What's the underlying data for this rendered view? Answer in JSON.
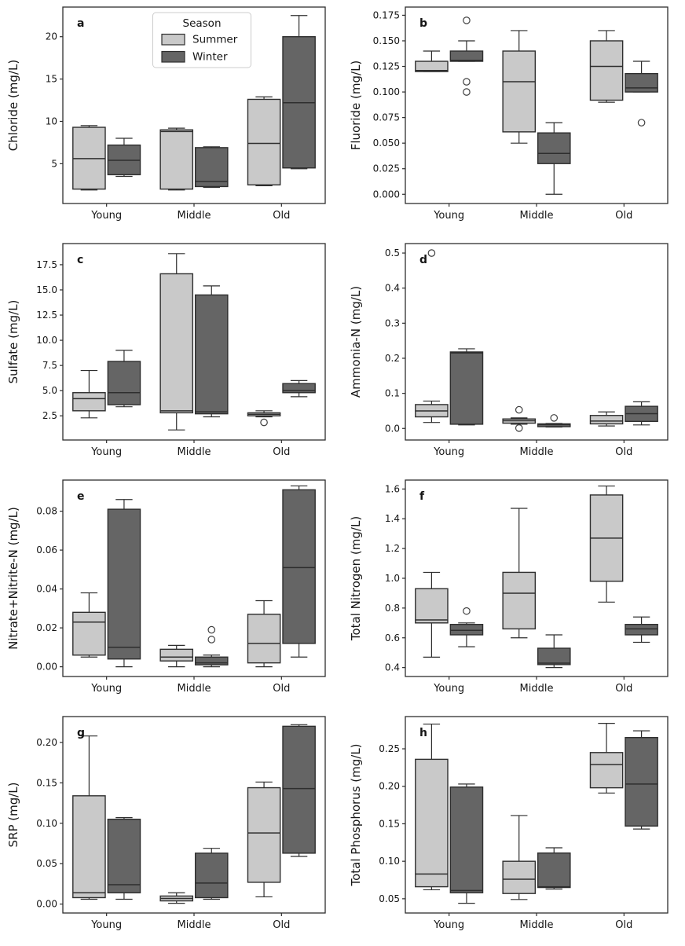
{
  "figure": {
    "background": "#ffffff",
    "spine_color": "#2e2e2e",
    "edge_color": "#2e2e2e",
    "flier_edge_color": "#3f3f3f",
    "tick_text_color": "#151515",
    "legend": {
      "title": "Season",
      "border_color": "#cccccc",
      "location": "upper center of panel a",
      "entries": [
        {
          "label": "Summer",
          "color": "#c9c9c9"
        },
        {
          "label": "Winter",
          "color": "#656565"
        }
      ]
    }
  },
  "chart_data": [
    {
      "type": "box",
      "panel_label": "a",
      "ylabel": "Chloride (mg/L)",
      "xlabel": "",
      "categories": [
        "Young",
        "Middle",
        "Old"
      ],
      "ylim": [
        0.3,
        23.5
      ],
      "yticks": [
        5,
        10,
        15,
        20
      ],
      "ytick_labels": [
        "5",
        "10",
        "15",
        "20"
      ],
      "has_legend": true,
      "series": [
        {
          "name": "Summer",
          "color": "#c9c9c9",
          "boxes": [
            {
              "whislo": 1.9,
              "q1": 2.0,
              "med": 5.6,
              "q3": 9.3,
              "whishi": 9.5,
              "fliers": []
            },
            {
              "whislo": 1.9,
              "q1": 2.0,
              "med": 8.8,
              "q3": 9.0,
              "whishi": 9.2,
              "fliers": []
            },
            {
              "whislo": 2.4,
              "q1": 2.5,
              "med": 7.4,
              "q3": 12.6,
              "whishi": 12.9,
              "fliers": []
            }
          ]
        },
        {
          "name": "Winter",
          "color": "#656565",
          "boxes": [
            {
              "whislo": 3.5,
              "q1": 3.7,
              "med": 5.4,
              "q3": 7.2,
              "whishi": 8.0,
              "fliers": []
            },
            {
              "whislo": 2.2,
              "q1": 2.3,
              "med": 2.9,
              "q3": 6.9,
              "whishi": 7.0,
              "fliers": []
            },
            {
              "whislo": 4.4,
              "q1": 4.5,
              "med": 12.2,
              "q3": 20.0,
              "whishi": 22.5,
              "fliers": []
            }
          ]
        }
      ]
    },
    {
      "type": "box",
      "panel_label": "b",
      "ylabel": "Fluoride (mg/L)",
      "xlabel": "",
      "categories": [
        "Young",
        "Middle",
        "Old"
      ],
      "ylim": [
        -0.009,
        0.183
      ],
      "yticks": [
        0.0,
        0.025,
        0.05,
        0.075,
        0.1,
        0.125,
        0.15,
        0.175
      ],
      "ytick_labels": [
        "0.000",
        "0.025",
        "0.050",
        "0.075",
        "0.100",
        "0.125",
        "0.150",
        "0.175"
      ],
      "has_legend": false,
      "series": [
        {
          "name": "Summer",
          "color": "#c9c9c9",
          "boxes": [
            {
              "whislo": 0.12,
              "q1": 0.12,
              "med": 0.121,
              "q3": 0.13,
              "whishi": 0.14,
              "fliers": []
            },
            {
              "whislo": 0.05,
              "q1": 0.061,
              "med": 0.11,
              "q3": 0.14,
              "whishi": 0.16,
              "fliers": []
            },
            {
              "whislo": 0.09,
              "q1": 0.092,
              "med": 0.125,
              "q3": 0.15,
              "whishi": 0.16,
              "fliers": []
            }
          ]
        },
        {
          "name": "Winter",
          "color": "#656565",
          "boxes": [
            {
              "whislo": 0.13,
              "q1": 0.13,
              "med": 0.131,
              "q3": 0.14,
              "whishi": 0.15,
              "fliers": [
                0.17,
                0.11,
                0.1
              ]
            },
            {
              "whislo": 0.0,
              "q1": 0.03,
              "med": 0.04,
              "q3": 0.06,
              "whishi": 0.07,
              "fliers": []
            },
            {
              "whislo": 0.1,
              "q1": 0.1,
              "med": 0.104,
              "q3": 0.118,
              "whishi": 0.13,
              "fliers": [
                0.07
              ]
            }
          ]
        }
      ]
    },
    {
      "type": "box",
      "panel_label": "c",
      "ylabel": "Sulfate (mg/L)",
      "xlabel": "",
      "categories": [
        "Young",
        "Middle",
        "Old"
      ],
      "ylim": [
        0.1,
        19.6
      ],
      "yticks": [
        2.5,
        5.0,
        7.5,
        10.0,
        12.5,
        15.0,
        17.5
      ],
      "ytick_labels": [
        "2.5",
        "5.0",
        "7.5",
        "10.0",
        "12.5",
        "15.0",
        "17.5"
      ],
      "has_legend": false,
      "series": [
        {
          "name": "Summer",
          "color": "#c9c9c9",
          "boxes": [
            {
              "whislo": 2.3,
              "q1": 3.0,
              "med": 4.2,
              "q3": 4.8,
              "whishi": 7.0,
              "fliers": []
            },
            {
              "whislo": 1.1,
              "q1": 2.8,
              "med": 3.0,
              "q3": 16.6,
              "whishi": 18.6,
              "fliers": []
            },
            {
              "whislo": 2.4,
              "q1": 2.5,
              "med": 2.65,
              "q3": 2.8,
              "whishi": 3.0,
              "fliers": [
                1.85
              ]
            }
          ]
        },
        {
          "name": "Winter",
          "color": "#656565",
          "boxes": [
            {
              "whislo": 3.4,
              "q1": 3.6,
              "med": 4.8,
              "q3": 7.9,
              "whishi": 9.0,
              "fliers": []
            },
            {
              "whislo": 2.4,
              "q1": 2.7,
              "med": 2.9,
              "q3": 14.5,
              "whishi": 15.4,
              "fliers": []
            },
            {
              "whislo": 4.4,
              "q1": 4.8,
              "med": 5.0,
              "q3": 5.7,
              "whishi": 6.0,
              "fliers": []
            }
          ]
        }
      ]
    },
    {
      "type": "box",
      "panel_label": "d",
      "ylabel": "Ammonia-N (mg/L)",
      "xlabel": "",
      "categories": [
        "Young",
        "Middle",
        "Old"
      ],
      "ylim": [
        -0.033,
        0.527
      ],
      "yticks": [
        0.0,
        0.1,
        0.2,
        0.3,
        0.4,
        0.5
      ],
      "ytick_labels": [
        "0.0",
        "0.1",
        "0.2",
        "0.3",
        "0.4",
        "0.5"
      ],
      "has_legend": false,
      "series": [
        {
          "name": "Summer",
          "color": "#c9c9c9",
          "boxes": [
            {
              "whislo": 0.017,
              "q1": 0.033,
              "med": 0.05,
              "q3": 0.068,
              "whishi": 0.078,
              "fliers": [
                0.5
              ]
            },
            {
              "whislo": 0.012,
              "q1": 0.015,
              "med": 0.022,
              "q3": 0.027,
              "whishi": 0.03,
              "fliers": [
                0.053,
                0.001
              ]
            },
            {
              "whislo": 0.007,
              "q1": 0.013,
              "med": 0.021,
              "q3": 0.037,
              "whishi": 0.047,
              "fliers": []
            }
          ]
        },
        {
          "name": "Winter",
          "color": "#656565",
          "boxes": [
            {
              "whislo": 0.01,
              "q1": 0.012,
              "med": 0.215,
              "q3": 0.218,
              "whishi": 0.227,
              "fliers": []
            },
            {
              "whislo": 0.004,
              "q1": 0.005,
              "med": 0.011,
              "q3": 0.013,
              "whishi": 0.014,
              "fliers": [
                0.03
              ]
            },
            {
              "whislo": 0.01,
              "q1": 0.02,
              "med": 0.042,
              "q3": 0.063,
              "whishi": 0.076,
              "fliers": []
            }
          ]
        }
      ]
    },
    {
      "type": "box",
      "panel_label": "e",
      "ylabel": "Nitrate+Nitrite-N (mg/L)",
      "xlabel": "",
      "categories": [
        "Young",
        "Middle",
        "Old"
      ],
      "ylim": [
        -0.005,
        0.096
      ],
      "yticks": [
        0.0,
        0.02,
        0.04,
        0.06,
        0.08
      ],
      "ytick_labels": [
        "0.00",
        "0.02",
        "0.04",
        "0.06",
        "0.08"
      ],
      "has_legend": false,
      "series": [
        {
          "name": "Summer",
          "color": "#c9c9c9",
          "boxes": [
            {
              "whislo": 0.005,
              "q1": 0.006,
              "med": 0.023,
              "q3": 0.028,
              "whishi": 0.038,
              "fliers": []
            },
            {
              "whislo": 0.0,
              "q1": 0.003,
              "med": 0.005,
              "q3": 0.009,
              "whishi": 0.011,
              "fliers": []
            },
            {
              "whislo": 0.0,
              "q1": 0.002,
              "med": 0.012,
              "q3": 0.027,
              "whishi": 0.034,
              "fliers": []
            }
          ]
        },
        {
          "name": "Winter",
          "color": "#656565",
          "boxes": [
            {
              "whislo": 0.0,
              "q1": 0.004,
              "med": 0.01,
              "q3": 0.081,
              "whishi": 0.086,
              "fliers": []
            },
            {
              "whislo": 0.0,
              "q1": 0.001,
              "med": 0.002,
              "q3": 0.005,
              "whishi": 0.006,
              "fliers": [
                0.019,
                0.014
              ]
            },
            {
              "whislo": 0.005,
              "q1": 0.012,
              "med": 0.051,
              "q3": 0.091,
              "whishi": 0.093,
              "fliers": []
            }
          ]
        }
      ]
    },
    {
      "type": "box",
      "panel_label": "f",
      "ylabel": "Total Nitrogen (mg/L)",
      "xlabel": "",
      "categories": [
        "Young",
        "Middle",
        "Old"
      ],
      "ylim": [
        0.34,
        1.66
      ],
      "yticks": [
        0.4,
        0.6,
        0.8,
        1.0,
        1.2,
        1.4,
        1.6
      ],
      "ytick_labels": [
        "0.4",
        "0.6",
        "0.8",
        "1.0",
        "1.2",
        "1.4",
        "1.6"
      ],
      "has_legend": false,
      "series": [
        {
          "name": "Summer",
          "color": "#c9c9c9",
          "boxes": [
            {
              "whislo": 0.47,
              "q1": 0.7,
              "med": 0.72,
              "q3": 0.93,
              "whishi": 1.04,
              "fliers": []
            },
            {
              "whislo": 0.6,
              "q1": 0.66,
              "med": 0.9,
              "q3": 1.04,
              "whishi": 1.47,
              "fliers": []
            },
            {
              "whislo": 0.84,
              "q1": 0.98,
              "med": 1.27,
              "q3": 1.56,
              "whishi": 1.62,
              "fliers": []
            }
          ]
        },
        {
          "name": "Winter",
          "color": "#656565",
          "boxes": [
            {
              "whislo": 0.54,
              "q1": 0.62,
              "med": 0.65,
              "q3": 0.69,
              "whishi": 0.7,
              "fliers": [
                0.78
              ]
            },
            {
              "whislo": 0.4,
              "q1": 0.42,
              "med": 0.43,
              "q3": 0.53,
              "whishi": 0.62,
              "fliers": []
            },
            {
              "whislo": 0.57,
              "q1": 0.62,
              "med": 0.66,
              "q3": 0.69,
              "whishi": 0.74,
              "fliers": []
            }
          ]
        }
      ]
    },
    {
      "type": "box",
      "panel_label": "g",
      "ylabel": "SRP (mg/L)",
      "xlabel": "",
      "categories": [
        "Young",
        "Middle",
        "Old"
      ],
      "ylim": [
        -0.011,
        0.232
      ],
      "yticks": [
        0.0,
        0.05,
        0.1,
        0.15,
        0.2
      ],
      "ytick_labels": [
        "0.00",
        "0.05",
        "0.10",
        "0.15",
        "0.20"
      ],
      "has_legend": false,
      "series": [
        {
          "name": "Summer",
          "color": "#c9c9c9",
          "boxes": [
            {
              "whislo": 0.006,
              "q1": 0.008,
              "med": 0.014,
              "q3": 0.134,
              "whishi": 0.208,
              "fliers": []
            },
            {
              "whislo": 0.001,
              "q1": 0.004,
              "med": 0.007,
              "q3": 0.01,
              "whishi": 0.014,
              "fliers": []
            },
            {
              "whislo": 0.009,
              "q1": 0.027,
              "med": 0.088,
              "q3": 0.144,
              "whishi": 0.151,
              "fliers": []
            }
          ]
        },
        {
          "name": "Winter",
          "color": "#656565",
          "boxes": [
            {
              "whislo": 0.006,
              "q1": 0.014,
              "med": 0.024,
              "q3": 0.105,
              "whishi": 0.107,
              "fliers": []
            },
            {
              "whislo": 0.006,
              "q1": 0.008,
              "med": 0.026,
              "q3": 0.063,
              "whishi": 0.069,
              "fliers": []
            },
            {
              "whislo": 0.059,
              "q1": 0.063,
              "med": 0.143,
              "q3": 0.22,
              "whishi": 0.222,
              "fliers": []
            }
          ]
        }
      ]
    },
    {
      "type": "box",
      "panel_label": "h",
      "ylabel": "Total Phosphorus (mg/L)",
      "xlabel": "",
      "categories": [
        "Young",
        "Middle",
        "Old"
      ],
      "ylim": [
        0.031,
        0.293
      ],
      "yticks": [
        0.05,
        0.1,
        0.15,
        0.2,
        0.25
      ],
      "ytick_labels": [
        "0.05",
        "0.10",
        "0.15",
        "0.20",
        "0.25"
      ],
      "has_legend": false,
      "series": [
        {
          "name": "Summer",
          "color": "#c9c9c9",
          "boxes": [
            {
              "whislo": 0.062,
              "q1": 0.066,
              "med": 0.083,
              "q3": 0.236,
              "whishi": 0.283,
              "fliers": []
            },
            {
              "whislo": 0.049,
              "q1": 0.057,
              "med": 0.076,
              "q3": 0.1,
              "whishi": 0.161,
              "fliers": []
            },
            {
              "whislo": 0.191,
              "q1": 0.198,
              "med": 0.229,
              "q3": 0.245,
              "whishi": 0.284,
              "fliers": []
            }
          ]
        },
        {
          "name": "Winter",
          "color": "#656565",
          "boxes": [
            {
              "whislo": 0.044,
              "q1": 0.058,
              "med": 0.061,
              "q3": 0.199,
              "whishi": 0.203,
              "fliers": []
            },
            {
              "whislo": 0.063,
              "q1": 0.065,
              "med": 0.066,
              "q3": 0.111,
              "whishi": 0.118,
              "fliers": []
            },
            {
              "whislo": 0.143,
              "q1": 0.147,
              "med": 0.203,
              "q3": 0.265,
              "whishi": 0.274,
              "fliers": []
            }
          ]
        }
      ]
    }
  ]
}
